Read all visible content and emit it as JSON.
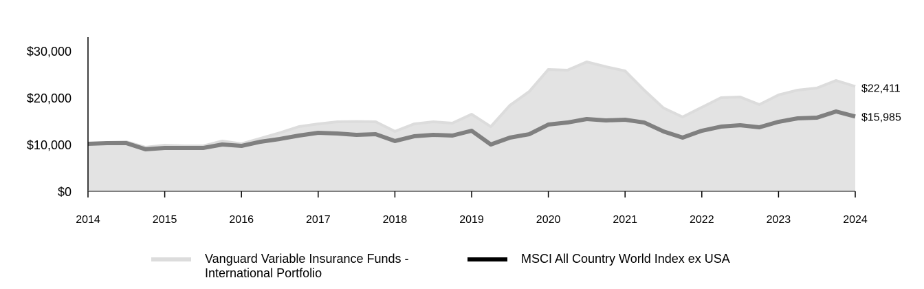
{
  "chart_data": {
    "type": "area",
    "title": "",
    "xlabel": "",
    "ylabel": "",
    "ylim": [
      0,
      30000
    ],
    "xlim": [
      2014,
      2024
    ],
    "yticks": [
      "$0",
      "$10,000",
      "$20,000",
      "$30,000"
    ],
    "ytick_values": [
      0,
      10000,
      20000,
      30000
    ],
    "xticks": [
      "2014",
      "2015",
      "2016",
      "2017",
      "2018",
      "2019",
      "2020",
      "2021",
      "2022",
      "2023",
      "2024"
    ],
    "x_step": 0.25,
    "series": [
      {
        "name": "Vanguard Variable Insurance Funds - International Portfolio",
        "name_lines": [
          "Vanguard Variable Insurance Funds -",
          "International Portfolio"
        ],
        "color": "#dcdcdc",
        "fill": "#e3e3e3",
        "end_label": "$22,411",
        "values": [
          10000,
          10440,
          10590,
          9410,
          9850,
          9700,
          9700,
          10740,
          10150,
          11320,
          12500,
          13820,
          14400,
          14850,
          14900,
          14850,
          12800,
          14400,
          14850,
          14560,
          16470,
          13820,
          18380,
          21300,
          26030,
          25880,
          27650,
          26620,
          25730,
          21600,
          17800,
          15880,
          17940,
          20000,
          20150,
          18530,
          20590,
          21620,
          22060,
          23680,
          22411
        ]
      },
      {
        "name": "MSCI All Country World Index ex USA",
        "color": "#808080",
        "legend_color": "#000000",
        "end_label": "$15,985",
        "values": [
          10150,
          10290,
          10290,
          8970,
          9260,
          9260,
          9260,
          10000,
          9700,
          10590,
          11180,
          11910,
          12500,
          12350,
          12060,
          12200,
          10740,
          11760,
          12060,
          11910,
          12940,
          10000,
          11470,
          12200,
          14260,
          14700,
          15440,
          15150,
          15290,
          14700,
          12800,
          11470,
          12940,
          13820,
          14120,
          13680,
          14850,
          15590,
          15740,
          17060,
          15985
        ]
      }
    ],
    "legend_position": "bottom"
  }
}
